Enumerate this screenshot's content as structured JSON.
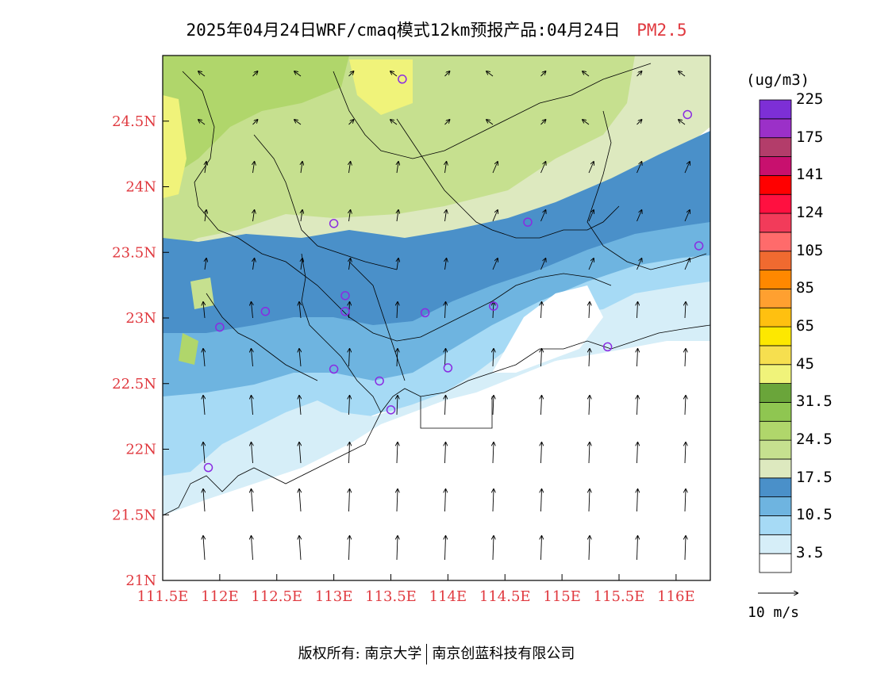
{
  "title": {
    "main": "2025年04月24日WRF/cmaq模式12km预报产品:04月24日",
    "pollutant": "PM2.5"
  },
  "map": {
    "lat_labels": [
      "24.5N",
      "24N",
      "23.5N",
      "23N",
      "22.5N",
      "22N",
      "21.5N",
      "21N"
    ],
    "lon_labels": [
      "111.5E",
      "112E",
      "112.5E",
      "113E",
      "113.5E",
      "114E",
      "114.5E",
      "115E",
      "115.5E",
      "116E"
    ],
    "lat_range": [
      21.0,
      25.0
    ],
    "lon_range": [
      111.5,
      116.3
    ],
    "stations": [
      {
        "lon": 113.6,
        "lat": 24.82
      },
      {
        "lon": 116.1,
        "lat": 24.55
      },
      {
        "lon": 113.0,
        "lat": 23.72
      },
      {
        "lon": 114.7,
        "lat": 23.73
      },
      {
        "lon": 116.2,
        "lat": 23.55
      },
      {
        "lon": 113.1,
        "lat": 23.17
      },
      {
        "lon": 112.4,
        "lat": 23.05
      },
      {
        "lon": 113.1,
        "lat": 23.05
      },
      {
        "lon": 113.8,
        "lat": 23.04
      },
      {
        "lon": 114.4,
        "lat": 23.09
      },
      {
        "lon": 112.0,
        "lat": 22.93
      },
      {
        "lon": 115.4,
        "lat": 22.78
      },
      {
        "lon": 113.0,
        "lat": 22.61
      },
      {
        "lon": 114.0,
        "lat": 22.62
      },
      {
        "lon": 113.4,
        "lat": 22.52
      },
      {
        "lon": 113.5,
        "lat": 22.3
      },
      {
        "lon": 111.9,
        "lat": 21.86
      }
    ]
  },
  "colorbar": {
    "units": "(ug/m3)",
    "colors": [
      "#ffffff",
      "#d6eef8",
      "#a6daf5",
      "#6eb4e0",
      "#4a90c9",
      "#dde9bf",
      "#c6e08f",
      "#b0d66b",
      "#8fc651",
      "#6aa53a",
      "#f0f37a",
      "#f6df4f",
      "#fde800",
      "#ffc010",
      "#ffa030",
      "#ff8800",
      "#f06a30",
      "#ff6b6b",
      "#f23b5a",
      "#ff1040",
      "#ff0000",
      "#c8106e",
      "#b33d6a",
      "#9b30c8",
      "#7d2fd6"
    ],
    "labels": [
      "3.5",
      "10.5",
      "17.5",
      "24.5",
      "31.5",
      "45",
      "65",
      "85",
      "105",
      "124",
      "141",
      "175",
      "225"
    ]
  },
  "wind_reference": {
    "label": "10 m/s"
  },
  "footer": {
    "left": "版权所有: 南京大学",
    "right": "南京创蓝科技有限公司"
  }
}
